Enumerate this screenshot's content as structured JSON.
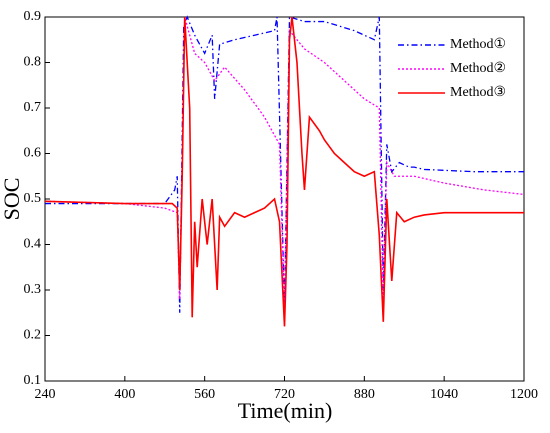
{
  "chart_data": {
    "type": "line",
    "xlabel": "Time(min)",
    "ylabel": "SOC",
    "xlim": [
      240,
      1200
    ],
    "ylim": [
      0.1,
      0.9
    ],
    "xticks": [
      240,
      400,
      560,
      720,
      880,
      1040,
      1200
    ],
    "yticks": [
      0.1,
      0.2,
      0.3,
      0.4,
      0.5,
      0.6,
      0.7,
      0.8,
      0.9
    ],
    "legend": "upper right",
    "series": [
      {
        "name": "Method①",
        "color": "#0000ff",
        "style": "dashdot",
        "x": [
          240,
          480,
          500,
          505,
          510,
          518,
          525,
          540,
          560,
          575,
          580,
          590,
          620,
          660,
          700,
          705,
          720,
          730,
          760,
          800,
          860,
          900,
          910,
          918,
          925,
          935,
          950,
          970,
          980,
          1000,
          1100,
          1200
        ],
        "values": [
          0.49,
          0.49,
          0.52,
          0.55,
          0.25,
          0.88,
          0.9,
          0.86,
          0.82,
          0.86,
          0.72,
          0.84,
          0.85,
          0.86,
          0.87,
          0.9,
          0.26,
          0.9,
          0.89,
          0.89,
          0.87,
          0.85,
          0.9,
          0.3,
          0.62,
          0.56,
          0.58,
          0.57,
          0.57,
          0.565,
          0.56,
          0.56
        ]
      },
      {
        "name": "Method②",
        "color": "#ff00ff",
        "style": "dotted",
        "x": [
          240,
          400,
          480,
          505,
          510,
          520,
          540,
          560,
          580,
          600,
          640,
          680,
          710,
          720,
          730,
          760,
          800,
          840,
          880,
          910,
          918,
          925,
          940,
          980,
          1040,
          1120,
          1200
        ],
        "values": [
          0.495,
          0.49,
          0.48,
          0.47,
          0.28,
          0.9,
          0.82,
          0.8,
          0.76,
          0.79,
          0.74,
          0.68,
          0.62,
          0.25,
          0.87,
          0.83,
          0.8,
          0.76,
          0.72,
          0.7,
          0.27,
          0.58,
          0.55,
          0.55,
          0.535,
          0.52,
          0.51
        ]
      },
      {
        "name": "Method③",
        "color": "#ff0000",
        "style": "solid",
        "x": [
          240,
          400,
          480,
          495,
          505,
          510,
          515,
          520,
          530,
          535,
          540,
          545,
          555,
          565,
          575,
          585,
          590,
          600,
          620,
          640,
          660,
          680,
          700,
          710,
          720,
          725,
          730,
          735,
          745,
          755,
          760,
          770,
          790,
          800,
          820,
          840,
          860,
          880,
          900,
          910,
          918,
          925,
          935,
          945,
          960,
          980,
          1000,
          1040,
          1100,
          1200
        ],
        "values": [
          0.495,
          0.49,
          0.49,
          0.49,
          0.48,
          0.3,
          0.55,
          0.9,
          0.7,
          0.24,
          0.45,
          0.35,
          0.5,
          0.4,
          0.5,
          0.3,
          0.46,
          0.44,
          0.47,
          0.46,
          0.47,
          0.48,
          0.5,
          0.45,
          0.22,
          0.4,
          0.85,
          0.9,
          0.8,
          0.6,
          0.52,
          0.68,
          0.65,
          0.63,
          0.6,
          0.58,
          0.56,
          0.55,
          0.56,
          0.42,
          0.23,
          0.5,
          0.32,
          0.47,
          0.45,
          0.46,
          0.465,
          0.47,
          0.47,
          0.47
        ]
      }
    ]
  }
}
